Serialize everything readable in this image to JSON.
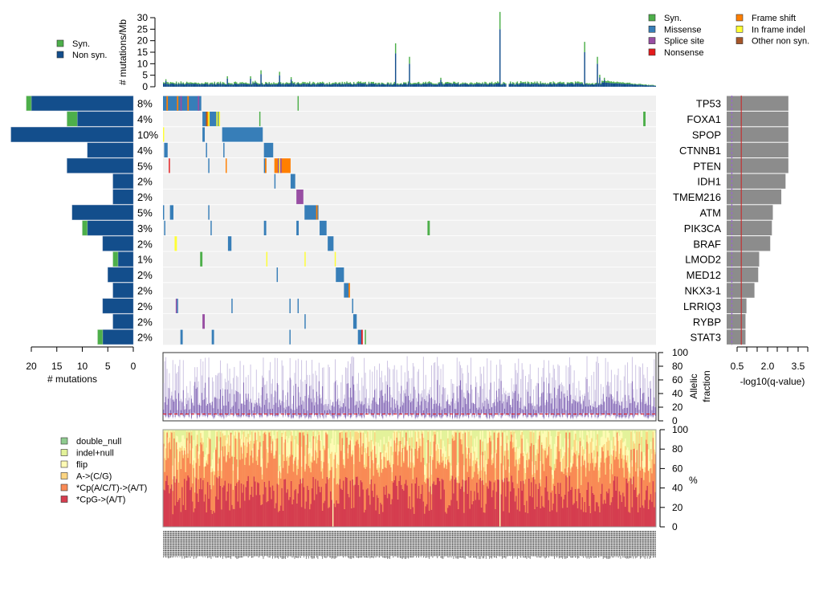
{
  "colors": {
    "syn": "#4DAF4A",
    "nonsyn": "#134E8C",
    "missense": "#377EB8",
    "splice_site": "#984EA3",
    "nonsense": "#E41A1C",
    "frame_shift": "#FF7F00",
    "in_frame_indel": "#FFFF33",
    "other_non_syn": "#A65628",
    "matrix_bg": "#F0F0F0",
    "qbar": "#8C8C8C",
    "q_redline": "#CC2222",
    "q_purpleline": "#9966CC",
    "af_line": "#7A5BB0",
    "af_line_light": "#C8BEE0",
    "af_median": "#E41A1C",
    "sig_double_null": "#8FCB8F",
    "sig_indel_null": "#E3F29A",
    "sig_flip": "#FEFBB5",
    "sig_a_cg": "#FDD582",
    "sig_cpacgt": "#F98A55",
    "sig_cpg": "#D53D4F"
  },
  "top_legend": {
    "items": [
      {
        "label": "Syn.",
        "color_key": "syn"
      },
      {
        "label": "Non syn.",
        "color_key": "nonsyn"
      }
    ]
  },
  "type_legend": {
    "items": [
      {
        "label": "Syn.",
        "color_key": "syn"
      },
      {
        "label": "Missense",
        "color_key": "missense"
      },
      {
        "label": "Splice site",
        "color_key": "splice_site"
      },
      {
        "label": "Nonsense",
        "color_key": "nonsense"
      },
      {
        "label": "Frame shift",
        "color_key": "frame_shift"
      },
      {
        "label": "In frame indel",
        "color_key": "in_frame_indel"
      },
      {
        "label": "Other non syn.",
        "color_key": "other_non_syn"
      }
    ]
  },
  "signature_legend": {
    "items": [
      {
        "label": "double_null",
        "color_key": "sig_double_null"
      },
      {
        "label": "indel+null",
        "color_key": "sig_indel_null"
      },
      {
        "label": "flip",
        "color_key": "sig_flip"
      },
      {
        "label": "A->(C/G)",
        "color_key": "sig_a_cg"
      },
      {
        "label": "*Cp(A/C/T)->(A/T)",
        "color_key": "sig_cpacgt"
      },
      {
        "label": "*CpG->(A/T)",
        "color_key": "sig_cpg"
      }
    ]
  },
  "chart_data": [
    {
      "id": "mutation_rate",
      "type": "bar",
      "title": "",
      "ylabel": "# mutations/Mb",
      "ylim": [
        0,
        30
      ],
      "yticks": [
        0,
        5,
        10,
        15,
        20,
        25,
        30
      ],
      "n_samples": 425,
      "series": [
        {
          "name": "Non syn.",
          "peaks": [
            [
              0,
              1.5
            ],
            [
              2,
              2.5
            ],
            [
              55,
              3.5
            ],
            [
              75,
              3.5
            ],
            [
              79,
              2
            ],
            [
              84,
              5.5
            ],
            [
              100,
              5
            ],
            [
              110,
              3.2
            ],
            [
              200,
              14.5
            ],
            [
              212,
              10
            ],
            [
              239,
              3
            ],
            [
              290,
              25
            ],
            [
              363,
              15
            ],
            [
              374,
              10
            ],
            [
              376,
              4
            ],
            [
              380,
              3
            ]
          ],
          "baseline": 0.8,
          "tail_decay_start": 378,
          "tail_value_start": 1.8,
          "tail_value_end": 0.3
        },
        {
          "name": "Syn.",
          "syn_fraction": 0.3
        }
      ]
    },
    {
      "id": "gene_mutation_counts",
      "type": "bar",
      "orientation": "horizontal",
      "xlabel": "# mutations",
      "xlim": [
        0,
        23
      ],
      "xticks": [
        20,
        15,
        10,
        5,
        0
      ],
      "categories": [
        "TP53",
        "FOXA1",
        "SPOP",
        "CTNNB1",
        "PTEN",
        "IDH1",
        "TMEM216",
        "ATM",
        "PIK3CA",
        "BRAF",
        "LMOD2",
        "MED12",
        "NKX3-1",
        "LRRIQ3",
        "RYBP",
        "STAT3"
      ],
      "percent_labels": [
        "8%",
        "4%",
        "10%",
        "4%",
        "5%",
        "2%",
        "2%",
        "5%",
        "3%",
        "2%",
        "1%",
        "2%",
        "2%",
        "2%",
        "2%",
        "2%"
      ],
      "series": [
        {
          "name": "Non syn.",
          "values": [
            20,
            11,
            24,
            9,
            13,
            4,
            4,
            12,
            9,
            6,
            3,
            5,
            4,
            6,
            4,
            6
          ]
        },
        {
          "name": "Syn.",
          "values": [
            1,
            2,
            0,
            0,
            0,
            0,
            0,
            0,
            1,
            0,
            1,
            0,
            0,
            0,
            0,
            1
          ]
        }
      ]
    },
    {
      "id": "qvalue",
      "type": "bar",
      "orientation": "horizontal",
      "xlabel": "-log10(q-value)",
      "xticks_labels": [
        "0.5",
        "2.0",
        "3.5"
      ],
      "xtick_values": [
        0.5,
        1.0,
        1.5,
        2.0,
        2.5,
        3.0,
        3.5,
        4.0
      ],
      "xlim": [
        0,
        4.1
      ],
      "categories": [
        "TP53",
        "FOXA1",
        "SPOP",
        "CTNNB1",
        "PTEN",
        "IDH1",
        "TMEM216",
        "ATM",
        "PIK3CA",
        "BRAF",
        "LMOD2",
        "MED12",
        "NKX3-1",
        "LRRIQ3",
        "RYBP",
        "STAT3"
      ],
      "values": [
        3.0,
        3.0,
        3.0,
        3.0,
        3.0,
        2.88,
        2.7,
        2.34,
        2.3,
        2.23,
        1.76,
        1.72,
        1.56,
        1.22,
        1.18,
        1.18
      ],
      "threshold_red": 1.0,
      "threshold_purple": 0.6
    },
    {
      "id": "allelic_fraction",
      "type": "bar",
      "ylabel": "Allelic fraction",
      "ylim": [
        0,
        100
      ],
      "yticks": [
        0,
        20,
        40,
        60,
        80,
        100
      ],
      "median_line": 10
    },
    {
      "id": "mutation_signature",
      "type": "bar",
      "stacked": true,
      "ylabel": "%",
      "ylim": [
        0,
        100
      ],
      "yticks": [
        0,
        20,
        40,
        60,
        80,
        100
      ],
      "series_order": [
        "*CpG->(A/T)",
        "*Cp(A/C/T)->(A/T)",
        "A->(C/G)",
        "flip",
        "indel+null",
        "double_null"
      ],
      "mean_cumulative": [
        33,
        63,
        74,
        85,
        99.5,
        100
      ]
    }
  ],
  "matrix": {
    "genes": [
      "TP53",
      "FOXA1",
      "SPOP",
      "CTNNB1",
      "PTEN",
      "IDH1",
      "TMEM216",
      "ATM",
      "PIK3CA",
      "BRAF",
      "LMOD2",
      "MED12",
      "NKX3-1",
      "LRRIQ3",
      "RYBP",
      "STAT3"
    ],
    "n_samples": 425,
    "blocks": [
      {
        "row": 0,
        "from": 0,
        "to": 33,
        "type": "missense",
        "mix": [
          [
            3,
            "frame_shift"
          ],
          [
            12,
            "frame_shift"
          ],
          [
            15,
            "splice_site"
          ],
          [
            21,
            "frame_shift"
          ],
          [
            30,
            "splice_site"
          ]
        ]
      },
      {
        "row": 0,
        "from": 116,
        "to": 117,
        "type": "syn"
      },
      {
        "row": 1,
        "from": 34,
        "to": 49,
        "type": "missense",
        "mix": [
          [
            37,
            "other_non_syn"
          ],
          [
            38,
            "frame_shift"
          ],
          [
            39,
            "in_frame_indel"
          ],
          [
            46,
            "in_frame_indel"
          ],
          [
            48,
            "in_frame_indel"
          ]
        ]
      },
      {
        "row": 1,
        "from": 83,
        "to": 84,
        "type": "syn"
      },
      {
        "row": 1,
        "from": 414,
        "to": 416,
        "type": "syn"
      },
      {
        "row": 2,
        "from": 0,
        "to": 1,
        "type": "in_frame_indel"
      },
      {
        "row": 2,
        "from": 34,
        "to": 36,
        "type": "missense"
      },
      {
        "row": 2,
        "from": 51,
        "to": 86,
        "type": "missense"
      },
      {
        "row": 3,
        "from": 1,
        "to": 4,
        "type": "missense"
      },
      {
        "row": 3,
        "from": 37,
        "to": 38,
        "type": "missense"
      },
      {
        "row": 3,
        "from": 52,
        "to": 53,
        "type": "missense"
      },
      {
        "row": 3,
        "from": 87,
        "to": 95,
        "type": "missense"
      },
      {
        "row": 4,
        "from": 5,
        "to": 6,
        "type": "nonsense"
      },
      {
        "row": 4,
        "from": 39,
        "to": 40,
        "type": "missense"
      },
      {
        "row": 4,
        "from": 54,
        "to": 55,
        "type": "frame_shift"
      },
      {
        "row": 4,
        "from": 87,
        "to": 89,
        "type": "missense",
        "mix": [
          [
            88,
            "frame_shift"
          ]
        ]
      },
      {
        "row": 4,
        "from": 96,
        "to": 110,
        "type": "frame_shift",
        "mix": [
          [
            99,
            "splice_site"
          ],
          [
            100,
            "in_frame_indel"
          ],
          [
            101,
            "splice_site"
          ]
        ]
      },
      {
        "row": 5,
        "from": 96,
        "to": 97,
        "type": "missense"
      },
      {
        "row": 5,
        "from": 110,
        "to": 114,
        "type": "missense"
      },
      {
        "row": 6,
        "from": 115,
        "to": 121,
        "type": "splice_site"
      },
      {
        "row": 7,
        "from": 0,
        "to": 1,
        "type": "missense"
      },
      {
        "row": 7,
        "from": 6,
        "to": 9,
        "type": "missense"
      },
      {
        "row": 7,
        "from": 39,
        "to": 40,
        "type": "missense"
      },
      {
        "row": 7,
        "from": 122,
        "to": 134,
        "type": "missense",
        "mix": [
          [
            132,
            "frame_shift"
          ]
        ]
      },
      {
        "row": 8,
        "from": 1,
        "to": 2,
        "type": "missense"
      },
      {
        "row": 8,
        "from": 41,
        "to": 42,
        "type": "missense"
      },
      {
        "row": 8,
        "from": 87,
        "to": 89,
        "type": "missense"
      },
      {
        "row": 8,
        "from": 115,
        "to": 117,
        "type": "missense"
      },
      {
        "row": 8,
        "from": 135,
        "to": 141,
        "type": "missense"
      },
      {
        "row": 8,
        "from": 228,
        "to": 230,
        "type": "syn"
      },
      {
        "row": 9,
        "from": 10,
        "to": 12,
        "type": "in_frame_indel"
      },
      {
        "row": 9,
        "from": 56,
        "to": 59,
        "type": "missense"
      },
      {
        "row": 9,
        "from": 142,
        "to": 147,
        "type": "missense"
      },
      {
        "row": 10,
        "from": 32,
        "to": 34,
        "type": "syn"
      },
      {
        "row": 10,
        "from": 89,
        "to": 90,
        "type": "in_frame_indel"
      },
      {
        "row": 10,
        "from": 122,
        "to": 123,
        "type": "in_frame_indel"
      },
      {
        "row": 10,
        "from": 148,
        "to": 149,
        "type": "in_frame_indel"
      },
      {
        "row": 11,
        "from": 98,
        "to": 99,
        "type": "missense"
      },
      {
        "row": 11,
        "from": 149,
        "to": 156,
        "type": "missense"
      },
      {
        "row": 12,
        "from": 156,
        "to": 161,
        "type": "missense",
        "mix": [
          [
            160,
            "frame_shift"
          ]
        ]
      },
      {
        "row": 13,
        "from": 11,
        "to": 12,
        "type": "splice_site"
      },
      {
        "row": 13,
        "from": 12,
        "to": 13,
        "type": "missense"
      },
      {
        "row": 13,
        "from": 59,
        "to": 60,
        "type": "missense"
      },
      {
        "row": 13,
        "from": 109,
        "to": 110,
        "type": "missense"
      },
      {
        "row": 13,
        "from": 116,
        "to": 117,
        "type": "missense"
      },
      {
        "row": 13,
        "from": 163,
        "to": 164,
        "type": "missense"
      },
      {
        "row": 14,
        "from": 34,
        "to": 36,
        "type": "splice_site"
      },
      {
        "row": 14,
        "from": 122,
        "to": 123,
        "type": "missense"
      },
      {
        "row": 14,
        "from": 164,
        "to": 167,
        "type": "missense"
      },
      {
        "row": 15,
        "from": 15,
        "to": 17,
        "type": "missense"
      },
      {
        "row": 15,
        "from": 42,
        "to": 44,
        "type": "missense"
      },
      {
        "row": 15,
        "from": 109,
        "to": 110,
        "type": "missense"
      },
      {
        "row": 15,
        "from": 168,
        "to": 172,
        "type": "missense",
        "mix": [
          [
            171,
            "nonsense"
          ]
        ]
      },
      {
        "row": 15,
        "from": 174,
        "to": 175,
        "type": "syn"
      }
    ]
  }
}
